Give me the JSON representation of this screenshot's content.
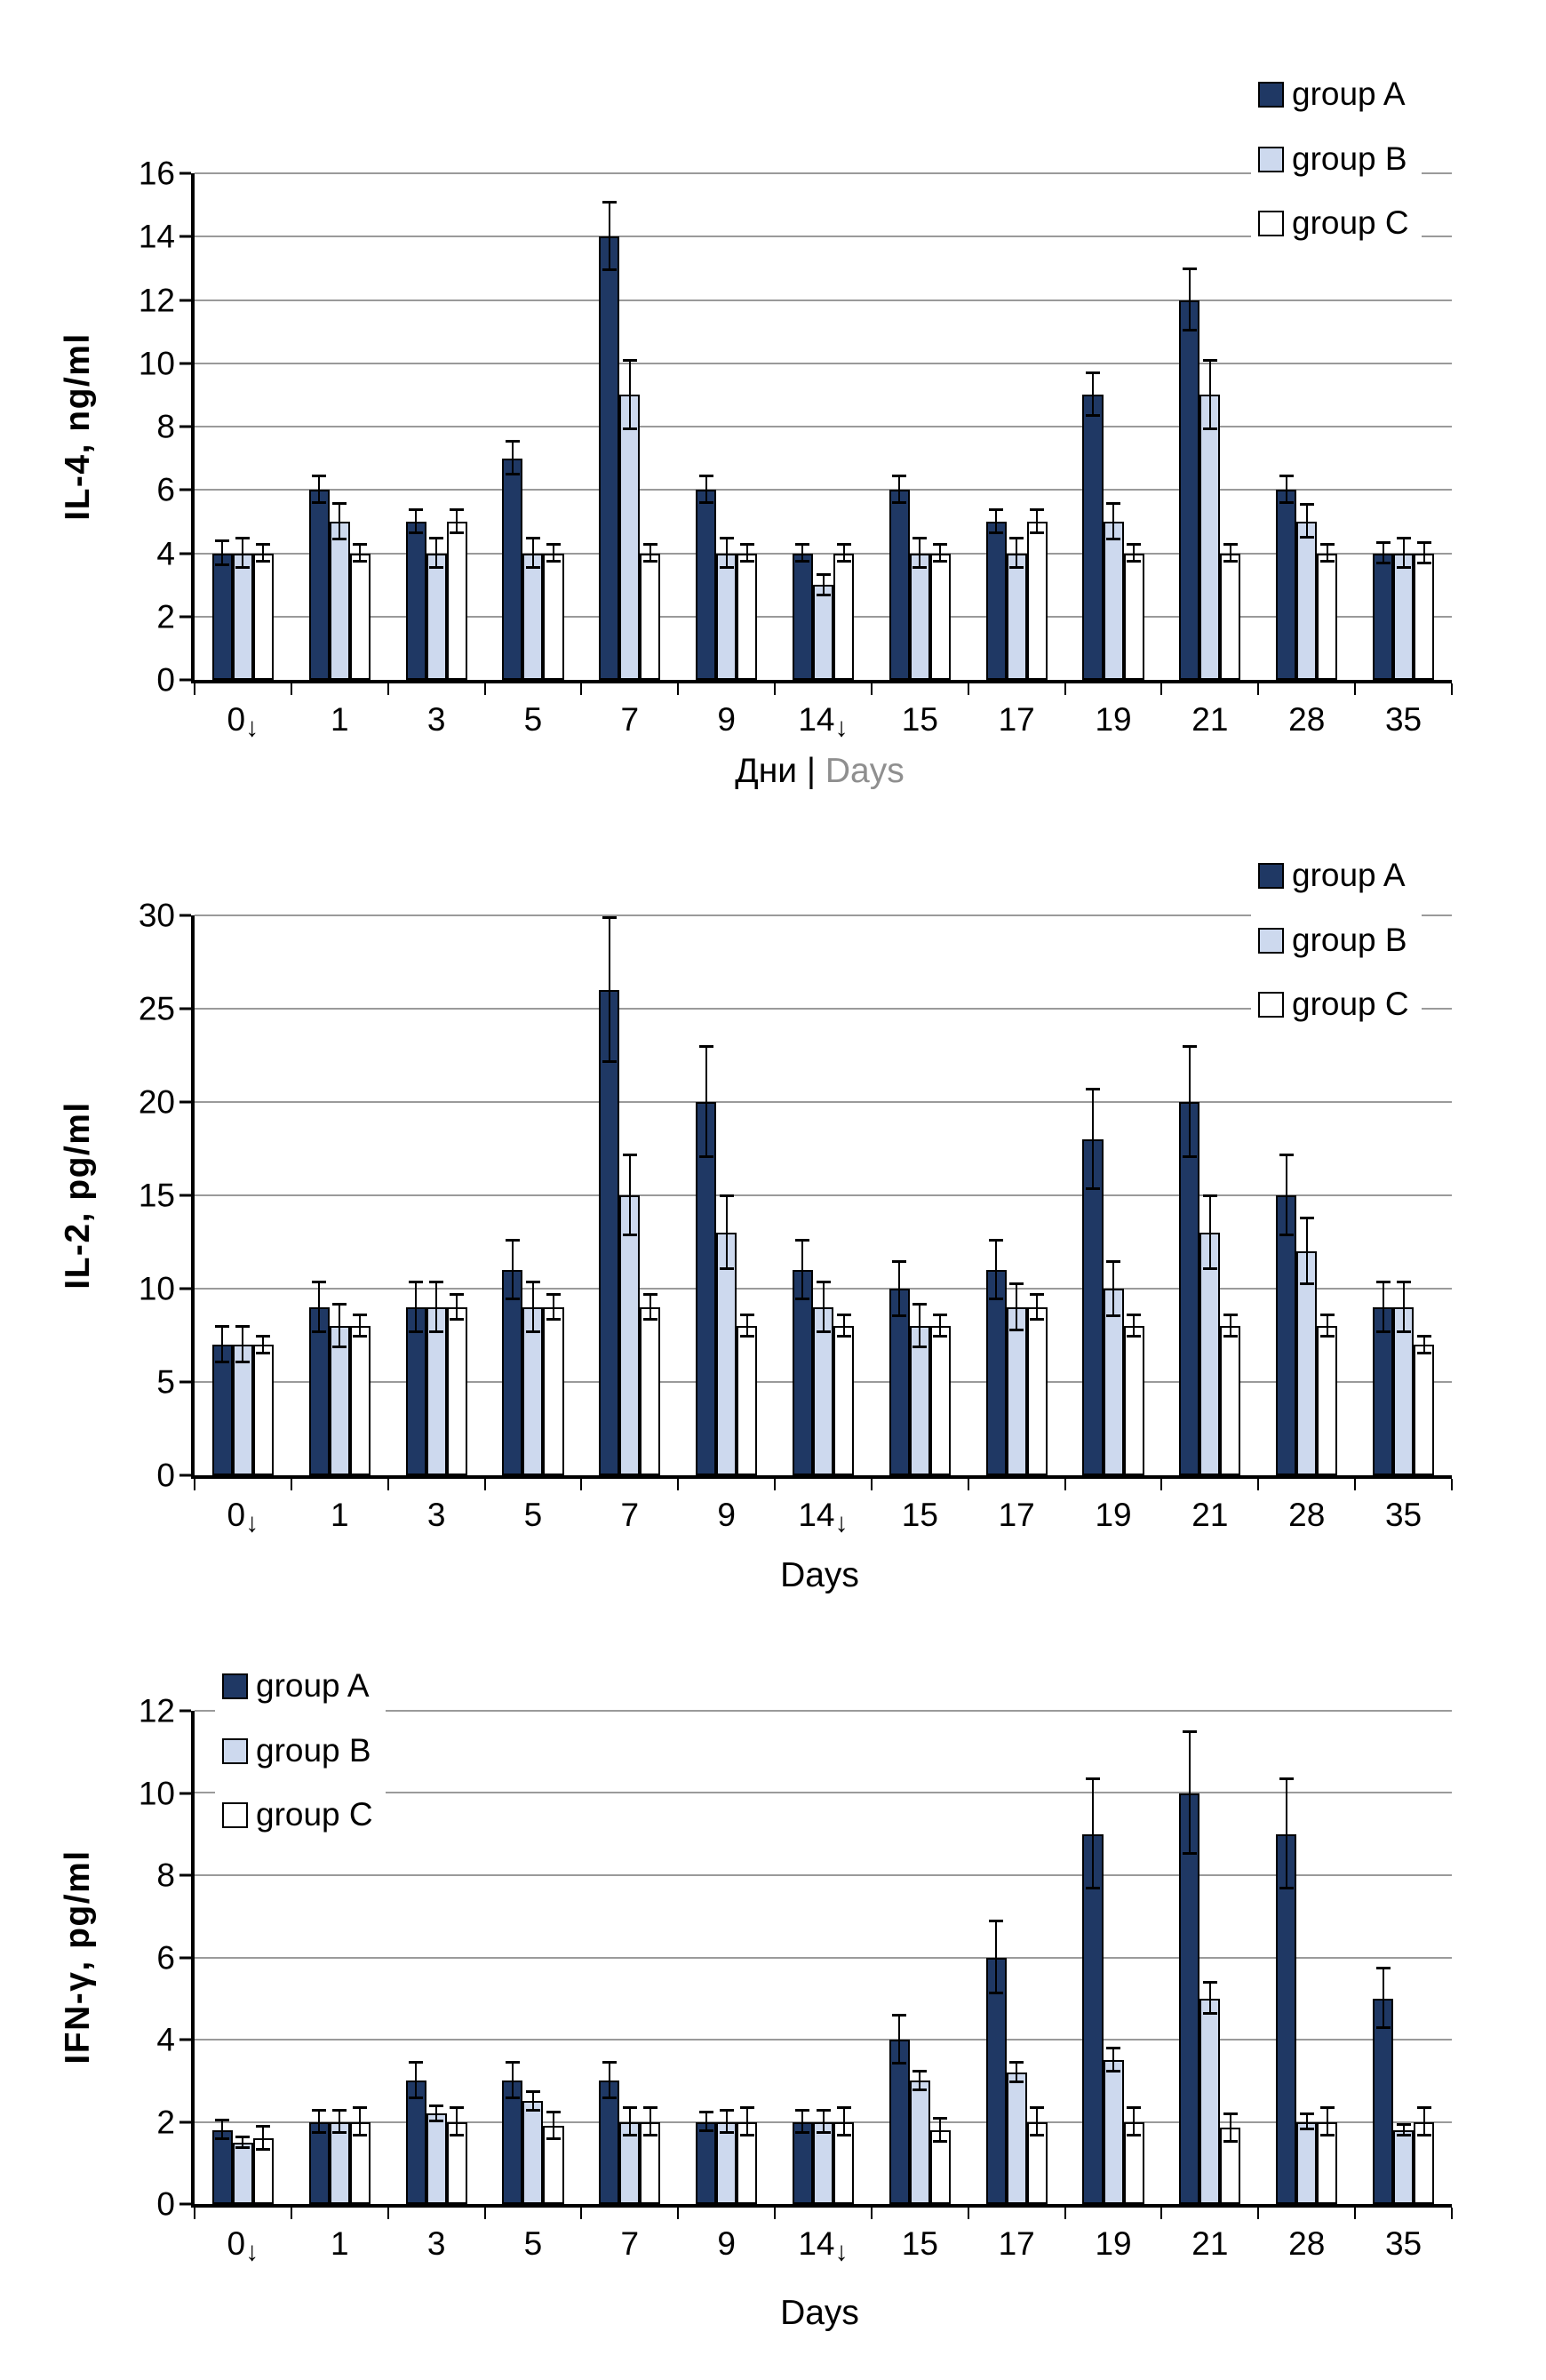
{
  "colors": {
    "group_a": "#1F3864",
    "group_b": "#CDD9EE",
    "group_c": "#FFFFFF",
    "bar_border": "#000000",
    "gridline": "#9A9A9A",
    "axis": "#000000",
    "secondary_text": "#8F8F8F"
  },
  "chart_data": [
    {
      "type": "bar",
      "title": "",
      "ylabel": "IL-4, ng/ml",
      "xlabel_parts": [
        "Дни | ",
        "Days"
      ],
      "ylim": [
        0,
        16
      ],
      "yticks": [
        0,
        2,
        4,
        6,
        8,
        10,
        12,
        14,
        16
      ],
      "grid": true,
      "legend_position": "top-right",
      "categories": [
        {
          "label": "0",
          "arrow": "↓"
        },
        {
          "label": "1"
        },
        {
          "label": "3"
        },
        {
          "label": "5"
        },
        {
          "label": "7"
        },
        {
          "label": "9"
        },
        {
          "label": "14",
          "arrow": "↓"
        },
        {
          "label": "15"
        },
        {
          "label": "17"
        },
        {
          "label": "19"
        },
        {
          "label": "21"
        },
        {
          "label": "28"
        },
        {
          "label": "35"
        }
      ],
      "series": [
        {
          "name": "group A",
          "color": "#1F3864",
          "values": [
            4,
            6,
            5,
            7,
            14,
            6,
            4,
            6,
            5,
            9,
            12,
            6,
            4
          ],
          "errors": [
            0.4,
            0.45,
            0.4,
            0.55,
            1.1,
            0.45,
            0.3,
            0.45,
            0.4,
            0.7,
            1.0,
            0.45,
            0.35
          ]
        },
        {
          "name": "group B",
          "color": "#CDD9EE",
          "values": [
            4,
            5,
            4,
            4,
            9,
            4,
            3,
            4,
            4,
            5,
            9,
            5,
            4
          ],
          "errors": [
            0.5,
            0.6,
            0.5,
            0.5,
            1.1,
            0.5,
            0.35,
            0.5,
            0.5,
            0.6,
            1.1,
            0.55,
            0.5
          ]
        },
        {
          "name": "group C",
          "color": "#FFFFFF",
          "values": [
            4,
            4,
            5,
            4,
            4,
            4,
            4,
            4,
            5,
            4,
            4,
            4,
            4
          ],
          "errors": [
            0.3,
            0.3,
            0.4,
            0.3,
            0.3,
            0.3,
            0.3,
            0.3,
            0.4,
            0.3,
            0.3,
            0.3,
            0.35
          ]
        }
      ]
    },
    {
      "type": "bar",
      "title": "",
      "ylabel": "IL-2, pg/ml",
      "xlabel_parts": [
        "Days"
      ],
      "ylim": [
        0,
        30
      ],
      "yticks": [
        0,
        5,
        10,
        15,
        20,
        25,
        30
      ],
      "grid": true,
      "legend_position": "top-right",
      "categories": [
        {
          "label": "0",
          "arrow": "↓"
        },
        {
          "label": "1"
        },
        {
          "label": "3"
        },
        {
          "label": "5"
        },
        {
          "label": "7"
        },
        {
          "label": "9"
        },
        {
          "label": "14",
          "arrow": "↓"
        },
        {
          "label": "15"
        },
        {
          "label": "17"
        },
        {
          "label": "19"
        },
        {
          "label": "21"
        },
        {
          "label": "28"
        },
        {
          "label": "35"
        }
      ],
      "series": [
        {
          "name": "group A",
          "color": "#1F3864",
          "values": [
            7,
            9,
            9,
            11,
            26,
            20,
            11,
            10,
            11,
            18,
            20,
            15,
            9
          ],
          "errors": [
            1.0,
            1.4,
            1.4,
            1.6,
            3.9,
            3.0,
            1.6,
            1.5,
            1.6,
            2.7,
            3.0,
            2.2,
            1.4
          ]
        },
        {
          "name": "group B",
          "color": "#CDD9EE",
          "values": [
            7,
            8,
            9,
            9,
            15,
            13,
            9,
            8,
            9,
            10,
            13,
            12,
            9
          ],
          "errors": [
            1.0,
            1.2,
            1.4,
            1.4,
            2.2,
            2.0,
            1.4,
            1.2,
            1.3,
            1.5,
            2.0,
            1.8,
            1.4
          ]
        },
        {
          "name": "group C",
          "color": "#FFFFFF",
          "values": [
            7,
            8,
            9,
            9,
            9,
            8,
            8,
            8,
            9,
            8,
            8,
            8,
            7
          ],
          "errors": [
            0.5,
            0.6,
            0.7,
            0.7,
            0.7,
            0.6,
            0.6,
            0.6,
            0.7,
            0.6,
            0.6,
            0.6,
            0.5
          ]
        }
      ]
    },
    {
      "type": "bar",
      "title": "",
      "ylabel": "IFN-γ, pg/ml",
      "xlabel_parts": [
        "Days"
      ],
      "ylim": [
        0,
        12
      ],
      "yticks": [
        0,
        2,
        4,
        6,
        8,
        10,
        12
      ],
      "grid": true,
      "legend_position": "top-left",
      "categories": [
        {
          "label": "0",
          "arrow": "↓"
        },
        {
          "label": "1"
        },
        {
          "label": "3"
        },
        {
          "label": "5"
        },
        {
          "label": "7"
        },
        {
          "label": "9"
        },
        {
          "label": "14",
          "arrow": "↓"
        },
        {
          "label": "15"
        },
        {
          "label": "17"
        },
        {
          "label": "19"
        },
        {
          "label": "21"
        },
        {
          "label": "28"
        },
        {
          "label": "35"
        }
      ],
      "series": [
        {
          "name": "group A",
          "color": "#1F3864",
          "values": [
            1.8,
            2,
            3,
            3,
            3,
            2,
            2,
            4,
            6,
            9,
            10,
            9,
            5
          ],
          "errors": [
            0.25,
            0.3,
            0.45,
            0.45,
            0.45,
            0.25,
            0.3,
            0.6,
            0.9,
            1.35,
            1.5,
            1.35,
            0.75
          ]
        },
        {
          "name": "group B",
          "color": "#CDD9EE",
          "values": [
            1.5,
            2,
            2.2,
            2.5,
            2,
            2,
            2,
            3,
            3.2,
            3.5,
            5,
            2,
            1.8
          ],
          "errors": [
            0.15,
            0.3,
            0.2,
            0.25,
            0.35,
            0.3,
            0.3,
            0.25,
            0.25,
            0.3,
            0.4,
            0.2,
            0.15
          ]
        },
        {
          "name": "group C",
          "color": "#FFFFFF",
          "values": [
            1.6,
            2,
            2,
            1.9,
            2,
            2,
            2,
            1.8,
            2,
            2,
            1.85,
            2,
            2
          ],
          "errors": [
            0.3,
            0.35,
            0.35,
            0.35,
            0.35,
            0.35,
            0.35,
            0.3,
            0.35,
            0.35,
            0.35,
            0.35,
            0.35
          ]
        }
      ]
    }
  ]
}
